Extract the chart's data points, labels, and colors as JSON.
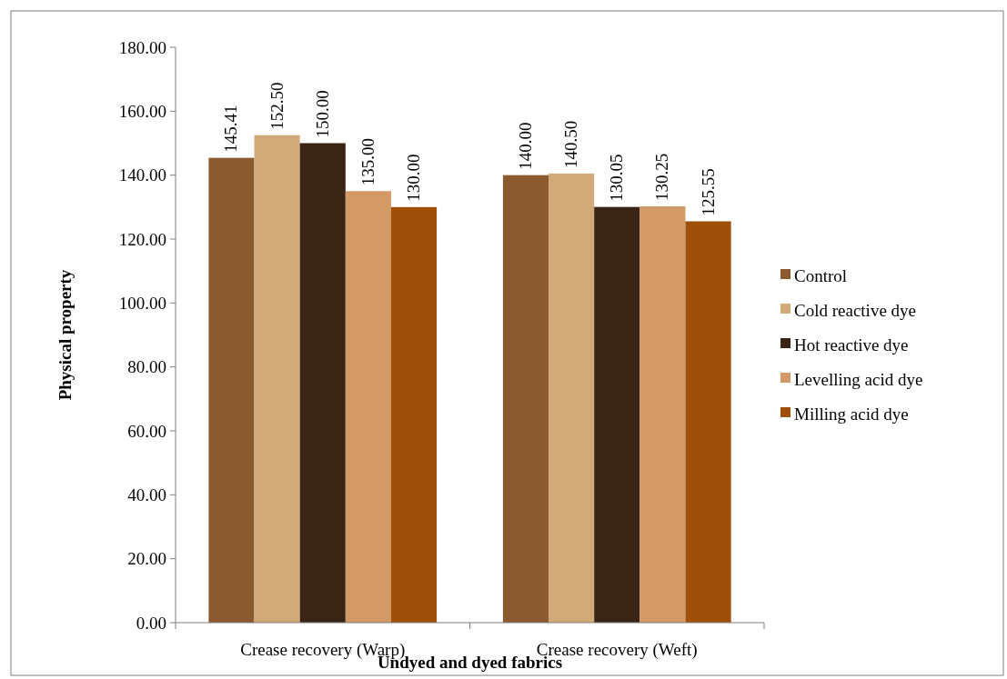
{
  "chart_data": {
    "type": "bar",
    "xlabel": "Undyed and dyed fabrics",
    "ylabel": "Physical property",
    "categories": [
      "Crease recovery (Warp)",
      "Crease recovery (Weft)"
    ],
    "series": [
      {
        "name": "Control",
        "color": "#8b5a2e",
        "values": [
          145.41,
          140.0
        ],
        "value_labels": [
          "145.41",
          "140.00"
        ]
      },
      {
        "name": "Cold reactive dye",
        "color": "#d2aa7a",
        "values": [
          152.5,
          140.5
        ],
        "value_labels": [
          "152.50",
          "140.50"
        ]
      },
      {
        "name": "Hot reactive dye",
        "color": "#3a2416",
        "values": [
          150.0,
          130.05
        ],
        "value_labels": [
          "150.00",
          "130.05"
        ]
      },
      {
        "name": "Levelling acid dye",
        "color": "#d49a66",
        "values": [
          135.0,
          130.25
        ],
        "value_labels": [
          "135.00",
          "130.25"
        ]
      },
      {
        "name": "Milling acid dye",
        "color": "#a04f0a",
        "values": [
          130.0,
          125.55
        ],
        "value_labels": [
          "130.00",
          "125.55"
        ]
      }
    ],
    "ylim": [
      0,
      180
    ],
    "yticks": [
      {
        "value": 0,
        "label": "0.00"
      },
      {
        "value": 20,
        "label": "20.00"
      },
      {
        "value": 40,
        "label": "40.00"
      },
      {
        "value": 60,
        "label": "60.00"
      },
      {
        "value": 80,
        "label": "80.00"
      },
      {
        "value": 100,
        "label": "100.00"
      },
      {
        "value": 120,
        "label": "120.00"
      },
      {
        "value": 140,
        "label": "140.00"
      },
      {
        "value": 160,
        "label": "160.00"
      },
      {
        "value": 180,
        "label": "180.00"
      }
    ],
    "grid": false,
    "legend": "right"
  }
}
